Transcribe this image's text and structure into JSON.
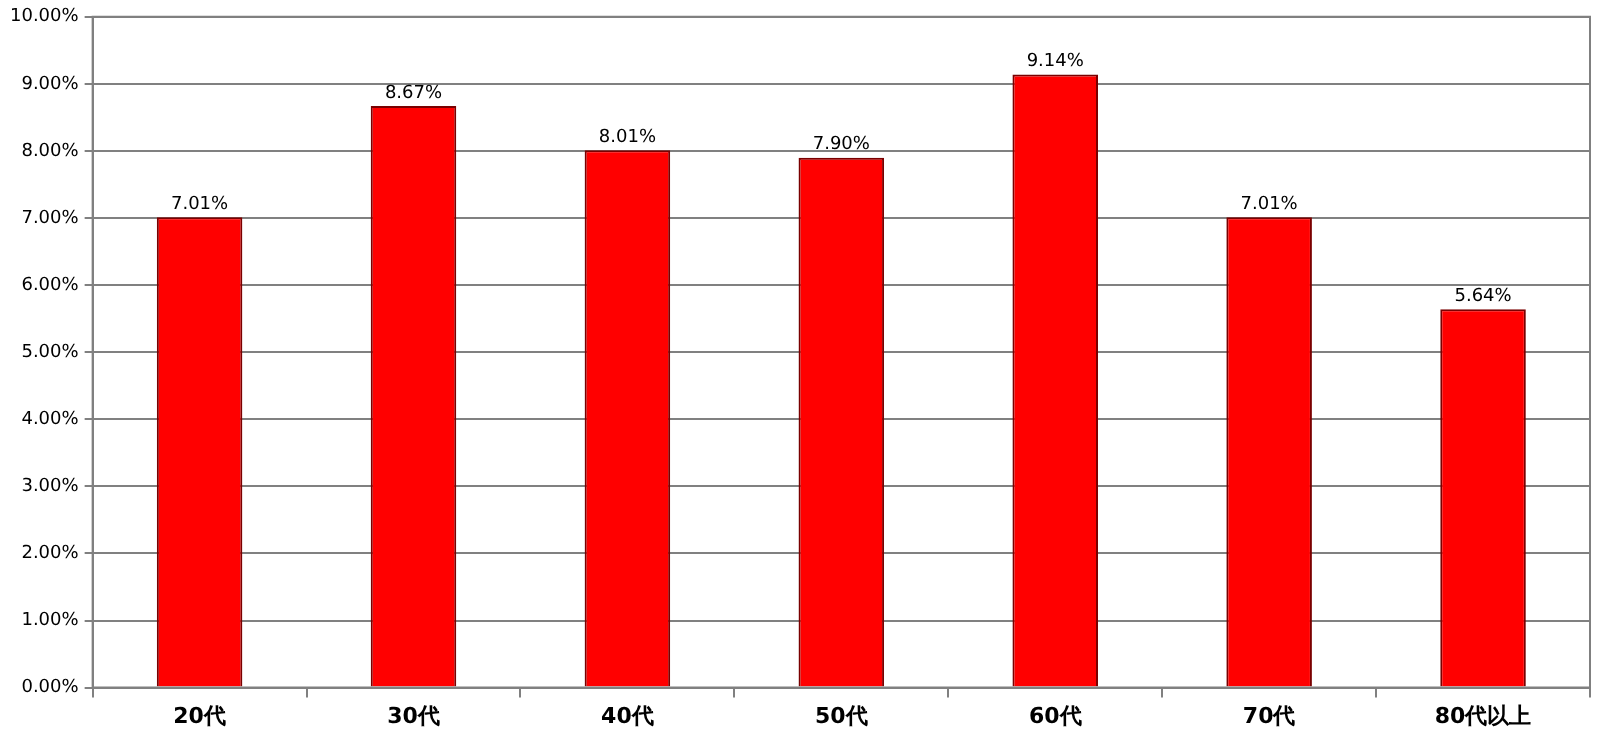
{
  "chart_data": {
    "type": "bar",
    "categories": [
      "20代",
      "30代",
      "40代",
      "50代",
      "60代",
      "70代",
      "80代以上"
    ],
    "values": [
      7.01,
      8.67,
      8.01,
      7.9,
      9.14,
      7.01,
      5.64
    ],
    "value_labels": [
      "7.01%",
      "8.67%",
      "8.01%",
      "7.90%",
      "9.14%",
      "7.01%",
      "5.64%"
    ],
    "color": "#ff0000",
    "ylim": [
      0,
      10
    ],
    "yticks": [
      {
        "value": 0,
        "label": "0.00%"
      },
      {
        "value": 1,
        "label": "1.00%"
      },
      {
        "value": 2,
        "label": "2.00%"
      },
      {
        "value": 3,
        "label": "3.00%"
      },
      {
        "value": 4,
        "label": "4.00%"
      },
      {
        "value": 5,
        "label": "5.00%"
      },
      {
        "value": 6,
        "label": "6.00%"
      },
      {
        "value": 7,
        "label": "7.00%"
      },
      {
        "value": 8,
        "label": "8.00%"
      },
      {
        "value": 9,
        "label": "9.00%"
      },
      {
        "value": 10,
        "label": "10.00%"
      }
    ],
    "grid": "y",
    "legend": false
  }
}
